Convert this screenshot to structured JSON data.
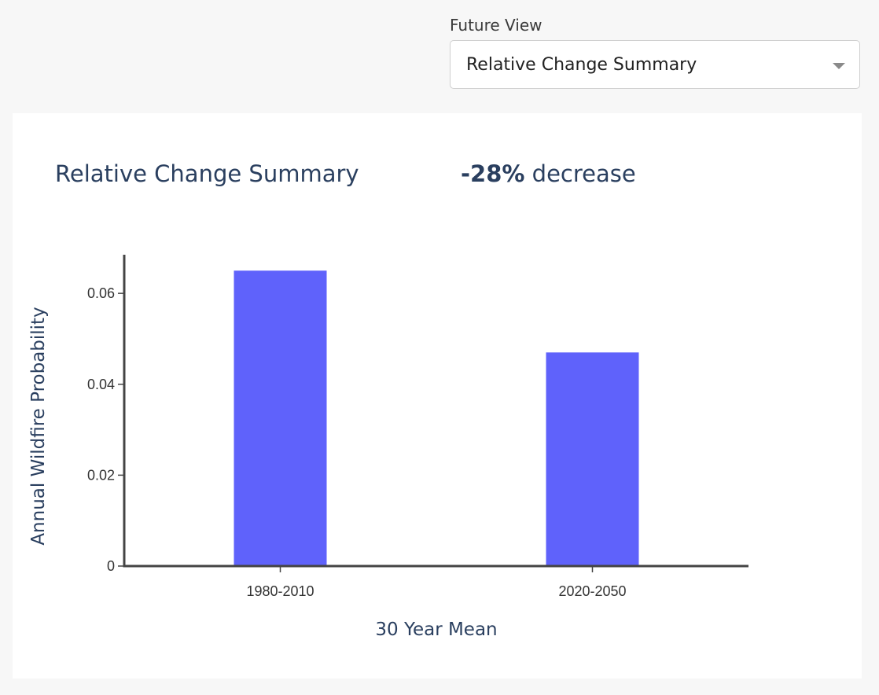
{
  "future_view": {
    "label": "Future View",
    "selected": "Relative Change Summary"
  },
  "summary": {
    "title": "Relative Change Summary",
    "change_value": "-28%",
    "change_word": "decrease"
  },
  "colors": {
    "bar": "#5f62fb",
    "axis": "#444444",
    "title": "#2a3f5f"
  },
  "chart_data": {
    "type": "bar",
    "categories": [
      "1980-2010",
      "2020-2050"
    ],
    "values": [
      0.065,
      0.047
    ],
    "xlabel": "30 Year Mean",
    "ylabel": "Annual Wildfire Probability",
    "ylim": [
      0,
      0.0685
    ],
    "yticks": [
      0,
      0.02,
      0.04,
      0.06
    ],
    "ytick_labels": [
      "0",
      "0.02",
      "0.04",
      "0.06"
    ],
    "grid": false,
    "legend": "none"
  }
}
